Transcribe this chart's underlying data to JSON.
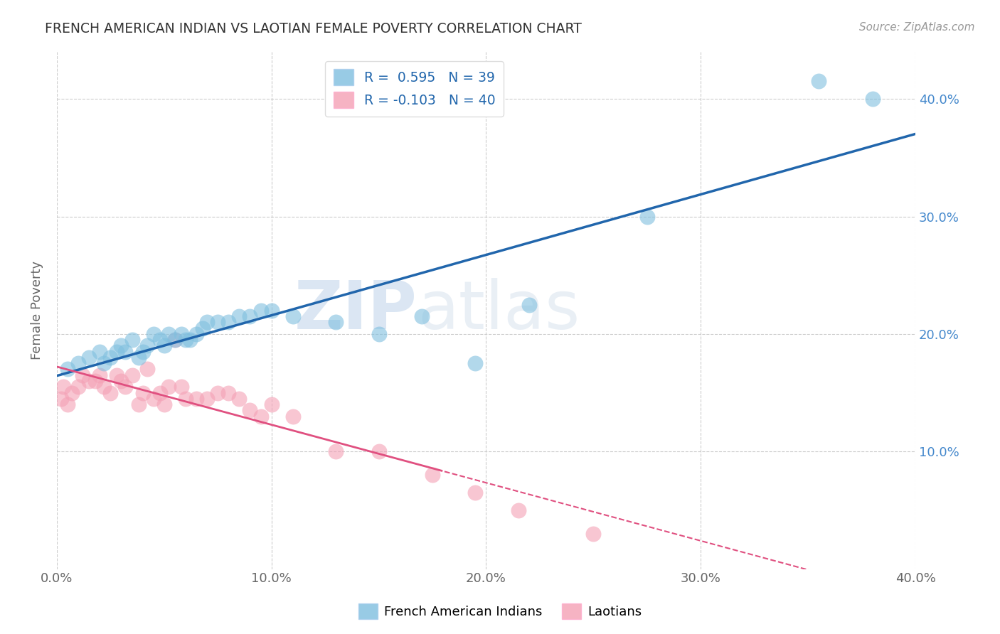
{
  "title": "FRENCH AMERICAN INDIAN VS LAOTIAN FEMALE POVERTY CORRELATION CHART",
  "source": "Source: ZipAtlas.com",
  "ylabel": "Female Poverty",
  "xlim": [
    0.0,
    0.4
  ],
  "ylim": [
    0.0,
    0.44
  ],
  "xtick_labels": [
    "0.0%",
    "10.0%",
    "20.0%",
    "30.0%",
    "40.0%"
  ],
  "xtick_vals": [
    0.0,
    0.1,
    0.2,
    0.3,
    0.4
  ],
  "ytick_labels": [
    "10.0%",
    "20.0%",
    "30.0%",
    "40.0%"
  ],
  "ytick_vals": [
    0.1,
    0.2,
    0.3,
    0.4
  ],
  "R1": 0.595,
  "N1": 39,
  "R2": -0.103,
  "N2": 40,
  "legend_label1": "French American Indians",
  "legend_label2": "Laotians",
  "color_blue": "#7fbfdf",
  "color_pink": "#f4a0b5",
  "color_blue_line": "#2166ac",
  "color_pink_line": "#e05080",
  "watermark_zip": "ZIP",
  "watermark_atlas": "atlas",
  "french_x": [
    0.005,
    0.01,
    0.015,
    0.02,
    0.022,
    0.025,
    0.028,
    0.03,
    0.032,
    0.035,
    0.038,
    0.04,
    0.042,
    0.045,
    0.048,
    0.05,
    0.052,
    0.055,
    0.058,
    0.06,
    0.062,
    0.065,
    0.068,
    0.07,
    0.075,
    0.08,
    0.085,
    0.09,
    0.095,
    0.1,
    0.11,
    0.13,
    0.15,
    0.17,
    0.195,
    0.22,
    0.275,
    0.355,
    0.38
  ],
  "french_y": [
    0.17,
    0.175,
    0.18,
    0.185,
    0.175,
    0.18,
    0.185,
    0.19,
    0.185,
    0.195,
    0.18,
    0.185,
    0.19,
    0.2,
    0.195,
    0.19,
    0.2,
    0.195,
    0.2,
    0.195,
    0.195,
    0.2,
    0.205,
    0.21,
    0.21,
    0.21,
    0.215,
    0.215,
    0.22,
    0.22,
    0.215,
    0.21,
    0.2,
    0.215,
    0.175,
    0.225,
    0.3,
    0.415,
    0.4
  ],
  "laotian_x": [
    0.002,
    0.003,
    0.005,
    0.007,
    0.01,
    0.012,
    0.015,
    0.018,
    0.02,
    0.022,
    0.025,
    0.028,
    0.03,
    0.032,
    0.035,
    0.038,
    0.04,
    0.042,
    0.045,
    0.048,
    0.05,
    0.052,
    0.055,
    0.058,
    0.06,
    0.065,
    0.07,
    0.075,
    0.08,
    0.085,
    0.09,
    0.095,
    0.1,
    0.11,
    0.13,
    0.15,
    0.175,
    0.195,
    0.215,
    0.25
  ],
  "laotian_y": [
    0.145,
    0.155,
    0.14,
    0.15,
    0.155,
    0.165,
    0.16,
    0.16,
    0.165,
    0.155,
    0.15,
    0.165,
    0.16,
    0.155,
    0.165,
    0.14,
    0.15,
    0.17,
    0.145,
    0.15,
    0.14,
    0.155,
    0.195,
    0.155,
    0.145,
    0.145,
    0.145,
    0.15,
    0.15,
    0.145,
    0.135,
    0.13,
    0.14,
    0.13,
    0.1,
    0.1,
    0.08,
    0.065,
    0.05,
    0.03
  ]
}
